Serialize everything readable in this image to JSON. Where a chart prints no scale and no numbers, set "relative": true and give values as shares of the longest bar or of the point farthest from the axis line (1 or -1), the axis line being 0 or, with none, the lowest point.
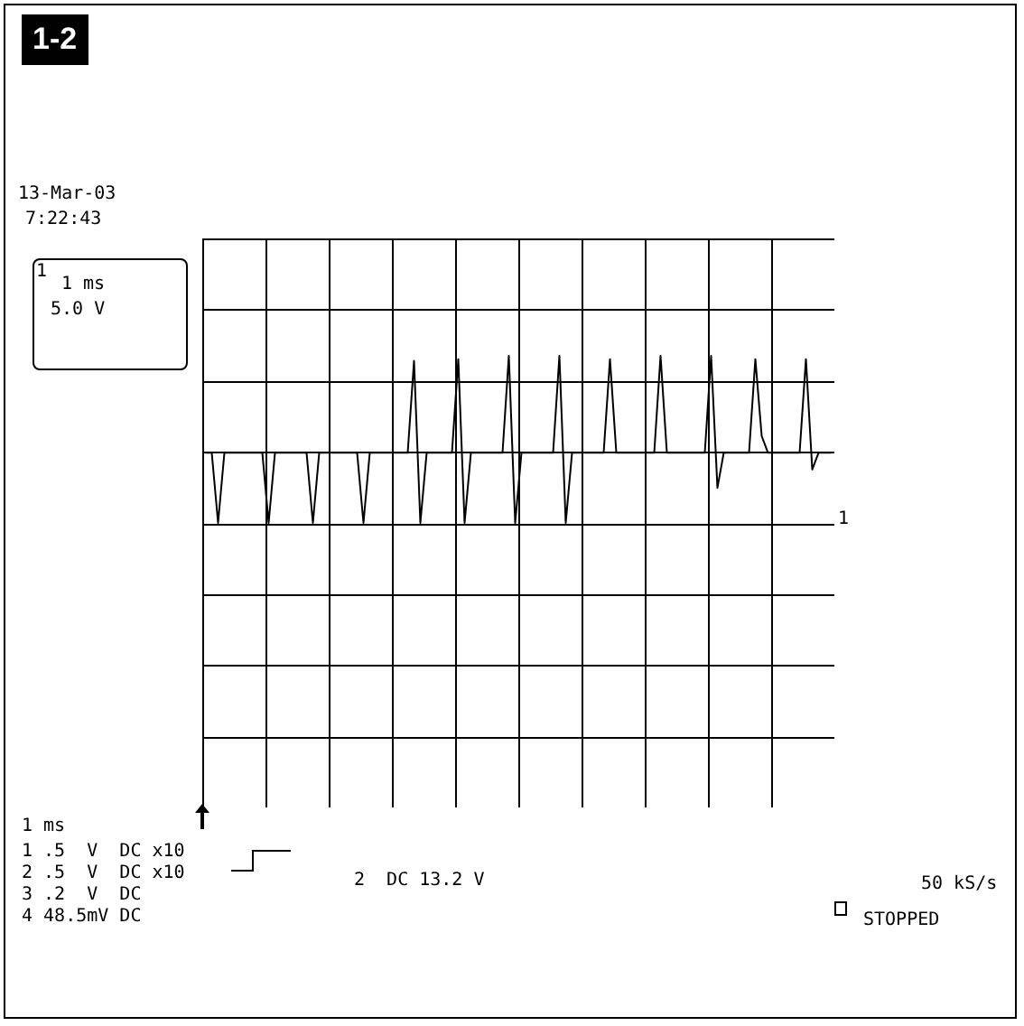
{
  "chart_data": {
    "type": "line",
    "title": "1-2",
    "relative": true,
    "grid": true,
    "annotations": [
      "13-Mar-03",
      "7:22:43",
      "1 ms",
      "5.0 V",
      "1 ms",
      "1 .5  V  DC x10",
      "2 .5  V  DC x10",
      "3 .2  V  DC",
      "4 48.5mV DC",
      "2  DC 13.2 V",
      "50 kS/s",
      "STOPPED",
      "1",
      "1"
    ],
    "categories": [
      null,
      null,
      null,
      null,
      null,
      null,
      null,
      null,
      null,
      null,
      null,
      null,
      null,
      null,
      null,
      null,
      null,
      null,
      null,
      null,
      null,
      null,
      null,
      null,
      null,
      null,
      null,
      null,
      null,
      null,
      null,
      null,
      null,
      null,
      null,
      null,
      null,
      null,
      null,
      null,
      null,
      null,
      null,
      null,
      null,
      null,
      null,
      null,
      null,
      null,
      null,
      null,
      null,
      null,
      null,
      null,
      null,
      null,
      null,
      null,
      null,
      null,
      null,
      null,
      null,
      null,
      null,
      null,
      null,
      null,
      null,
      null,
      null,
      null,
      null,
      null,
      null,
      null,
      null,
      null,
      null,
      null,
      null,
      null,
      null,
      null,
      null,
      null,
      null,
      null,
      null,
      null,
      null,
      null,
      null,
      null,
      null,
      null,
      null,
      null
    ],
    "series": [
      {
        "color": "#000000",
        "values": [
          0.42,
          0.42,
          0,
          0.42,
          0.42,
          0.42,
          0.42,
          0.42,
          0.42,
          0.42,
          0,
          0.42,
          0.42,
          0.42,
          0.42,
          0.42,
          0.42,
          0,
          0.42,
          0.42,
          0.42,
          0.42,
          0.42,
          0.42,
          0.42,
          0,
          0.42,
          0.42,
          0.42,
          0.42,
          0.42,
          0.42,
          0.42,
          0.97,
          0,
          0.42,
          0.42,
          0.42,
          0.42,
          0.42,
          0.98,
          0,
          0.42,
          0.42,
          0.42,
          0.42,
          0.42,
          0.42,
          1,
          0,
          0.42,
          0.42,
          0.42,
          0.42,
          0.42,
          0.42,
          1,
          0,
          0.42,
          0.42,
          0.42,
          0.42,
          0.42,
          0.42,
          0.98,
          0.42,
          0.42,
          0.42,
          0.42,
          0.42,
          0.42,
          0.42,
          1,
          0.42,
          0.42,
          0.42,
          0.42,
          0.42,
          0.42,
          0.42,
          1,
          0.21,
          0.42,
          0.42,
          0.42,
          0.42,
          0.42,
          0.98,
          0.52,
          0.42,
          0.42,
          0.42,
          0.42,
          0.42,
          0.42,
          0.98,
          0.32,
          0.42,
          0.42,
          0.42
        ]
      }
    ]
  }
}
